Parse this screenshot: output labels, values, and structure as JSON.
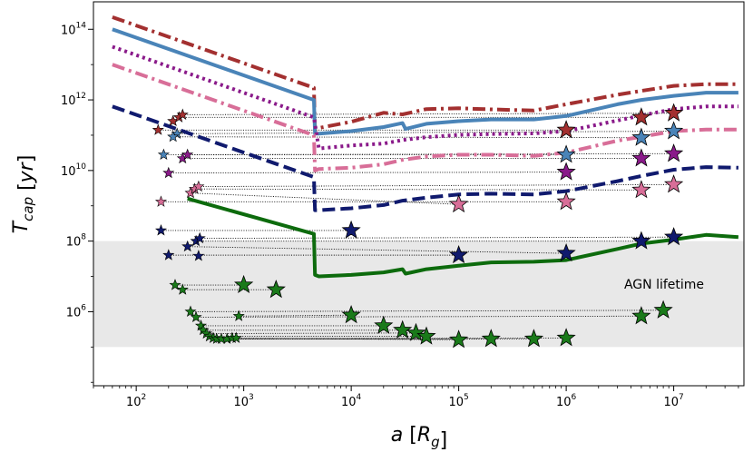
{
  "chart_data": {
    "type": "line",
    "xlabel": "a [R_g]",
    "ylabel": "T_cap [yr]",
    "xscale": "log",
    "yscale": "log",
    "xlim": [
      40,
      45000000
    ],
    "ylim": [
      8000,
      600000000000000.0
    ],
    "x_ticks": [
      {
        "v": 100,
        "base": "10",
        "exp": "2"
      },
      {
        "v": 1000,
        "base": "10",
        "exp": "3"
      },
      {
        "v": 10000,
        "base": "10",
        "exp": "4"
      },
      {
        "v": 100000,
        "base": "10",
        "exp": "5"
      },
      {
        "v": 1000000,
        "base": "10",
        "exp": "6"
      },
      {
        "v": 10000000,
        "base": "10",
        "exp": "7"
      }
    ],
    "y_ticks": [
      {
        "v": 1000000.0,
        "base": "10",
        "exp": "6"
      },
      {
        "v": 100000000.0,
        "base": "10",
        "exp": "8"
      },
      {
        "v": 10000000000.0,
        "base": "10",
        "exp": "10"
      },
      {
        "v": 1000000000000.0,
        "base": "10",
        "exp": "12"
      },
      {
        "v": 100000000000000.0,
        "base": "10",
        "exp": "14"
      }
    ],
    "shaded_band": {
      "label": "AGN lifetime",
      "y0": 100000.0,
      "y1": 100000000.0,
      "color": "#e8e8e8"
    },
    "series": [
      {
        "name": "dash-dot-darkred",
        "color": "#a33030",
        "style": "dashdot",
        "width": 4,
        "points": [
          [
            60,
            220000000000000.0
          ],
          [
            4500,
            2200000000000.0
          ],
          [
            4600,
            140000000000.0
          ],
          [
            5000,
            160000000000.0
          ],
          [
            10000,
            240000000000.0
          ],
          [
            20000,
            430000000000.0
          ],
          [
            30000,
            390000000000.0
          ],
          [
            50000,
            550000000000.0
          ],
          [
            100000,
            580000000000.0
          ],
          [
            200000,
            540000000000.0
          ],
          [
            500000,
            500000000000.0
          ],
          [
            1000000,
            750000000000.0
          ],
          [
            3000000,
            1400000000000.0
          ],
          [
            5000000,
            1800000000000.0
          ],
          [
            10000000,
            2500000000000.0
          ],
          [
            20000000,
            2800000000000.0
          ],
          [
            40000000,
            2800000000000.0
          ]
        ]
      },
      {
        "name": "solid-steelblue",
        "color": "#4a84b8",
        "style": "solid",
        "width": 4,
        "points": [
          [
            60,
            100000000000000.0
          ],
          [
            4500,
            1000000000000.0
          ],
          [
            4600,
            110000000000.0
          ],
          [
            5000,
            110000000000.0
          ],
          [
            10000,
            130000000000.0
          ],
          [
            20000,
            170000000000.0
          ],
          [
            30000,
            220000000000.0
          ],
          [
            32000,
            150000000000.0
          ],
          [
            50000,
            210000000000.0
          ],
          [
            100000,
            250000000000.0
          ],
          [
            200000,
            280000000000.0
          ],
          [
            500000,
            280000000000.0
          ],
          [
            1000000,
            350000000000.0
          ],
          [
            3000000,
            750000000000.0
          ],
          [
            5000000,
            1000000000000.0
          ],
          [
            10000000,
            1300000000000.0
          ],
          [
            20000000,
            1600000000000.0
          ],
          [
            40000000,
            1600000000000.0
          ]
        ]
      },
      {
        "name": "dotted-purple",
        "color": "#8a1a8a",
        "style": "dotted",
        "width": 4,
        "points": [
          [
            60,
            32000000000000.0
          ],
          [
            4500,
            320000000000.0
          ],
          [
            5000,
            42000000000.0
          ],
          [
            10000,
            51000000000.0
          ],
          [
            20000,
            58000000000.0
          ],
          [
            30000,
            73000000000.0
          ],
          [
            50000,
            88000000000.0
          ],
          [
            100000,
            102000000000.0
          ],
          [
            200000,
            108000000000.0
          ],
          [
            500000,
            112000000000.0
          ],
          [
            1000000,
            130000000000.0
          ],
          [
            3000000,
            260000000000.0
          ],
          [
            5000000,
            360000000000.0
          ],
          [
            10000000,
            550000000000.0
          ],
          [
            20000000,
            650000000000.0
          ],
          [
            40000000,
            650000000000.0
          ]
        ]
      },
      {
        "name": "dash-dot-pink",
        "color": "#d86e98",
        "style": "dashdot",
        "width": 4,
        "points": [
          [
            60,
            10000000000000.0
          ],
          [
            4500,
            100000000000.0
          ],
          [
            4600,
            10000000000.0
          ],
          [
            5000,
            11000000000.0
          ],
          [
            10000,
            12000000000.0
          ],
          [
            20000,
            15000000000.0
          ],
          [
            30000,
            20000000000.0
          ],
          [
            50000,
            25000000000.0
          ],
          [
            100000,
            28000000000.0
          ],
          [
            200000,
            28000000000.0
          ],
          [
            500000,
            26000000000.0
          ],
          [
            1000000,
            32000000000.0
          ],
          [
            3000000,
            70000000000.0
          ],
          [
            5000000,
            90000000000.0
          ],
          [
            10000000,
            130000000000.0
          ],
          [
            20000000,
            145000000000.0
          ],
          [
            40000000,
            145000000000.0
          ]
        ]
      },
      {
        "name": "dashed-navy",
        "color": "#101a6e",
        "style": "dashed",
        "width": 4,
        "points": [
          [
            60,
            650000000000.0
          ],
          [
            4500,
            6500000000.0
          ],
          [
            4600,
            750000000.0
          ],
          [
            5000,
            750000000.0
          ],
          [
            10000,
            850000000.0
          ],
          [
            20000,
            1050000000.0
          ],
          [
            30000,
            1400000000.0
          ],
          [
            50000,
            1700000000.0
          ],
          [
            100000,
            2100000000.0
          ],
          [
            200000,
            2200000000.0
          ],
          [
            500000,
            2100000000.0
          ],
          [
            1000000,
            2600000000.0
          ],
          [
            3000000,
            5000000000.0
          ],
          [
            5000000,
            7000000000.0
          ],
          [
            10000000,
            10500000000.0
          ],
          [
            20000000,
            12500000000.0
          ],
          [
            40000000,
            12000000000.0
          ]
        ]
      },
      {
        "name": "solid-green",
        "color": "#0d6b0d",
        "style": "solid",
        "width": 4,
        "points": [
          [
            300,
            1600000000.0
          ],
          [
            4500,
            160000000.0
          ],
          [
            4600,
            11000000.0
          ],
          [
            5000,
            10000000.0
          ],
          [
            10000,
            11000000.0
          ],
          [
            20000,
            13000000.0
          ],
          [
            30000,
            16000000.0
          ],
          [
            32000,
            12000000.0
          ],
          [
            50000,
            16000000.0
          ],
          [
            100000,
            20000000.0
          ],
          [
            200000,
            25000000.0
          ],
          [
            500000,
            26000000.0
          ],
          [
            1000000,
            29000000.0
          ],
          [
            3000000,
            60000000.0
          ],
          [
            5000000,
            85000000.0
          ],
          [
            10000000,
            110000000.0
          ],
          [
            20000000,
            150000000.0
          ],
          [
            40000000,
            130000000.0
          ]
        ]
      }
    ],
    "markers": [
      {
        "color": "#a33030",
        "size": "small",
        "x": 160,
        "y": 140000000000.0,
        "x_end": 1000000,
        "y_end": 140000000000.0
      },
      {
        "color": "#a33030",
        "size": "small",
        "x": 220,
        "y": 250000000000.0
      },
      {
        "color": "#a33030",
        "size": "small",
        "x": 250,
        "y": 320000000000.0,
        "x_end": 5000000,
        "y_end": 320000000000.0
      },
      {
        "color": "#a33030",
        "size": "small",
        "x": 270,
        "y": 380000000000.0,
        "x_end": 10000000,
        "y_end": 420000000000.0
      },
      {
        "color": "#a33030",
        "size": "big",
        "x": 1000000,
        "y": 140000000000.0
      },
      {
        "color": "#a33030",
        "size": "big",
        "x": 5000000,
        "y": 320000000000.0
      },
      {
        "color": "#a33030",
        "size": "big",
        "x": 10000000,
        "y": 420000000000.0
      },
      {
        "color": "#4a84b8",
        "size": "small",
        "x": 180,
        "y": 28000000000.0,
        "x_end": 1000000,
        "y_end": 28000000000.0
      },
      {
        "color": "#4a84b8",
        "size": "small",
        "x": 240,
        "y": 110000000000.0,
        "x_end": 10000000,
        "y_end": 130000000000.0
      },
      {
        "color": "#4a84b8",
        "size": "small",
        "x": 220,
        "y": 90000000000.0,
        "x_end": 5000000,
        "y_end": 85000000000.0
      },
      {
        "color": "#4a84b8",
        "size": "big",
        "x": 1000000,
        "y": 28000000000.0
      },
      {
        "color": "#4a84b8",
        "size": "big",
        "x": 5000000,
        "y": 85000000000.0
      },
      {
        "color": "#4a84b8",
        "size": "big",
        "x": 10000000,
        "y": 130000000000.0
      },
      {
        "color": "#8a1a8a",
        "size": "small",
        "x": 200,
        "y": 8500000000.0,
        "x_end": 1000000,
        "y_end": 9000000000.0
      },
      {
        "color": "#8a1a8a",
        "size": "small",
        "x": 270,
        "y": 22000000000.0,
        "x_end": 5000000,
        "y_end": 22000000000.0
      },
      {
        "color": "#8a1a8a",
        "size": "small",
        "x": 300,
        "y": 28000000000.0,
        "x_end": 10000000,
        "y_end": 30000000000.0
      },
      {
        "color": "#8a1a8a",
        "size": "big",
        "x": 1000000,
        "y": 9000000000.0
      },
      {
        "color": "#8a1a8a",
        "size": "big",
        "x": 5000000,
        "y": 22000000000.0
      },
      {
        "color": "#8a1a8a",
        "size": "big",
        "x": 10000000,
        "y": 30000000000.0
      },
      {
        "color": "#d86e98",
        "size": "small",
        "x": 170,
        "y": 1300000000.0,
        "x_end": 1000000,
        "y_end": 1300000000.0
      },
      {
        "color": "#d86e98",
        "size": "small",
        "x": 320,
        "y": 2300000000.0,
        "x_end": 100000,
        "y_end": 1100000000.0
      },
      {
        "color": "#d86e98",
        "size": "small",
        "x": 350,
        "y": 3000000000.0,
        "x_end": 5000000,
        "y_end": 2800000000.0
      },
      {
        "color": "#d86e98",
        "size": "small",
        "x": 380,
        "y": 3500000000.0,
        "x_end": 10000000,
        "y_end": 4000000000.0
      },
      {
        "color": "#d86e98",
        "size": "big",
        "x": 100000,
        "y": 1100000000.0
      },
      {
        "color": "#d86e98",
        "size": "big",
        "x": 1000000,
        "y": 1300000000.0
      },
      {
        "color": "#d86e98",
        "size": "big",
        "x": 5000000,
        "y": 2800000000.0
      },
      {
        "color": "#d86e98",
        "size": "big",
        "x": 10000000,
        "y": 4000000000.0
      },
      {
        "color": "#101a6e",
        "size": "small",
        "x": 170,
        "y": 200000000.0,
        "x_end": 10000,
        "y_end": 200000000.0
      },
      {
        "color": "#101a6e",
        "size": "small",
        "x": 200,
        "y": 40000000.0,
        "x_end": 100000,
        "y_end": 40000000.0
      },
      {
        "color": "#101a6e",
        "size": "small",
        "x": 300,
        "y": 70000000.0,
        "x_end": 1000000,
        "y_end": 45000000.0
      },
      {
        "color": "#101a6e",
        "size": "small",
        "x": 360,
        "y": 100000000.0,
        "x_end": 5000000,
        "y_end": 100000000.0
      },
      {
        "color": "#101a6e",
        "size": "small",
        "x": 390,
        "y": 120000000.0,
        "x_end": 10000000,
        "y_end": 130000000.0
      },
      {
        "color": "#101a6e",
        "size": "small",
        "x": 380,
        "y": 38000000.0
      },
      {
        "color": "#101a6e",
        "size": "big",
        "x": 10000,
        "y": 200000000.0
      },
      {
        "color": "#101a6e",
        "size": "big",
        "x": 100000,
        "y": 40000000.0
      },
      {
        "color": "#101a6e",
        "size": "big",
        "x": 1000000,
        "y": 45000000.0
      },
      {
        "color": "#101a6e",
        "size": "big",
        "x": 5000000,
        "y": 100000000.0
      },
      {
        "color": "#101a6e",
        "size": "big",
        "x": 10000000,
        "y": 130000000.0
      },
      {
        "color": "#1a7a1a",
        "size": "small",
        "x": 230,
        "y": 5700000.0,
        "x_end": 1000,
        "y_end": 5700000.0
      },
      {
        "color": "#1a7a1a",
        "size": "small",
        "x": 270,
        "y": 4200000.0,
        "x_end": 2000,
        "y_end": 4200000.0
      },
      {
        "color": "#1a7a1a",
        "size": "small",
        "x": 320,
        "y": 1000000.0,
        "x_end": 8000000,
        "y_end": 1100000.0
      },
      {
        "color": "#1a7a1a",
        "size": "small",
        "x": 360,
        "y": 700000.0,
        "x_end": 5000000,
        "y_end": 750000.0
      },
      {
        "color": "#1a7a1a",
        "size": "small",
        "x": 900,
        "y": 750000.0,
        "x_end": 10000,
        "y_end": 800000.0
      },
      {
        "color": "#1a7a1a",
        "size": "small",
        "x": 400,
        "y": 400000.0,
        "x_end": 20000,
        "y_end": 400000.0
      },
      {
        "color": "#1a7a1a",
        "size": "small",
        "x": 420,
        "y": 300000.0,
        "x_end": 30000,
        "y_end": 300000.0
      },
      {
        "color": "#1a7a1a",
        "size": "small",
        "x": 450,
        "y": 240000.0,
        "x_end": 40000,
        "y_end": 250000.0
      },
      {
        "color": "#1a7a1a",
        "size": "small",
        "x": 480,
        "y": 200000.0,
        "x_end": 50000,
        "y_end": 200000.0
      },
      {
        "color": "#1a7a1a",
        "size": "small",
        "x": 520,
        "y": 180000.0,
        "x_end": 100000,
        "y_end": 160000.0
      },
      {
        "color": "#1a7a1a",
        "size": "small",
        "x": 560,
        "y": 170000.0,
        "x_end": 200000,
        "y_end": 170000.0
      },
      {
        "color": "#1a7a1a",
        "size": "small",
        "x": 620,
        "y": 170000.0,
        "x_end": 500000,
        "y_end": 170000.0
      },
      {
        "color": "#1a7a1a",
        "size": "small",
        "x": 700,
        "y": 170000.0,
        "x_end": 1000000,
        "y_end": 180000.0
      },
      {
        "color": "#1a7a1a",
        "size": "small",
        "x": 780,
        "y": 180000.0
      },
      {
        "color": "#1a7a1a",
        "size": "small",
        "x": 850,
        "y": 180000.0
      },
      {
        "color": "#1a7a1a",
        "size": "big",
        "x": 1000,
        "y": 5700000.0
      },
      {
        "color": "#1a7a1a",
        "size": "big",
        "x": 2000,
        "y": 4200000.0
      },
      {
        "color": "#1a7a1a",
        "size": "big",
        "x": 10000,
        "y": 800000.0
      },
      {
        "color": "#1a7a1a",
        "size": "big",
        "x": 20000,
        "y": 400000.0
      },
      {
        "color": "#1a7a1a",
        "size": "big",
        "x": 30000,
        "y": 300000.0
      },
      {
        "color": "#1a7a1a",
        "size": "big",
        "x": 40000,
        "y": 250000.0
      },
      {
        "color": "#1a7a1a",
        "size": "big",
        "x": 50000,
        "y": 200000.0
      },
      {
        "color": "#1a7a1a",
        "size": "big",
        "x": 100000,
        "y": 160000.0
      },
      {
        "color": "#1a7a1a",
        "size": "big",
        "x": 200000,
        "y": 170000.0
      },
      {
        "color": "#1a7a1a",
        "size": "big",
        "x": 500000,
        "y": 170000.0
      },
      {
        "color": "#1a7a1a",
        "size": "big",
        "x": 1000000,
        "y": 180000.0
      },
      {
        "color": "#1a7a1a",
        "size": "big",
        "x": 5000000,
        "y": 750000.0
      },
      {
        "color": "#1a7a1a",
        "size": "big",
        "x": 8000000,
        "y": 1100000.0
      }
    ]
  }
}
